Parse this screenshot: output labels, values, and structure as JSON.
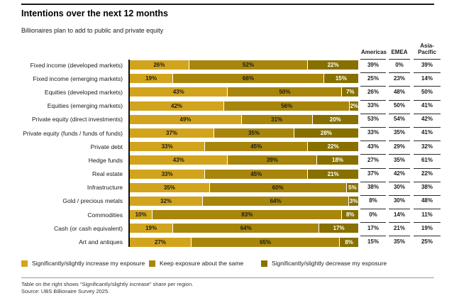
{
  "header": {
    "title": "Intentions over the next 12 months",
    "subtitle": "Billionaires plan to add to public and private equity"
  },
  "footer": {
    "note": "Table on the right shows “Significantly/slightly increase” share per region.",
    "source": "Source: UBS Billionaire Survey 2025."
  },
  "colors": {
    "increase": "#D2A41D",
    "same": "#A8860B",
    "decrease": "#877000"
  },
  "chart_data": {
    "type": "bar",
    "orientation": "horizontal",
    "stacked": true,
    "title": "Intentions over the next 12 months",
    "subtitle": "Billionaires plan to add to public and private equity",
    "xlabel": "",
    "ylabel": "",
    "xlim": [
      0,
      100
    ],
    "unit": "%",
    "legend_position": "bottom",
    "categories": [
      "Fixed income (developed markets)",
      "Fixed income (emerging markets)",
      "Equities (developed markets)",
      "Equities (emerging markets)",
      "Private equity (direct investments)",
      "Private equity (funds / funds of funds)",
      "Private debt",
      "Hedge funds",
      "Real estate",
      "Infrastructure",
      "Gold / precious metals",
      "Commodities",
      "Cash (or cash equivalent)",
      "Art and antiques"
    ],
    "series": [
      {
        "name": "Significantly/slightly increase my exposure",
        "color": "#D2A41D",
        "values": [
          26,
          19,
          43,
          42,
          49,
          37,
          33,
          43,
          33,
          35,
          32,
          10,
          19,
          27
        ]
      },
      {
        "name": "Keep exposure about the same",
        "color": "#A8860B",
        "values": [
          52,
          66,
          50,
          56,
          31,
          35,
          45,
          39,
          45,
          60,
          64,
          83,
          64,
          65
        ]
      },
      {
        "name": "Significantly/slightly decrease my exposure",
        "color": "#877000",
        "values": [
          22,
          15,
          7,
          2,
          20,
          28,
          22,
          18,
          21,
          5,
          3,
          8,
          17,
          8
        ]
      }
    ],
    "region_table": {
      "columns": [
        "Americas",
        "EMEA",
        "Asia-Pacific"
      ],
      "rows": [
        [
          39,
          0,
          39
        ],
        [
          25,
          23,
          14
        ],
        [
          26,
          48,
          50
        ],
        [
          33,
          50,
          41
        ],
        [
          53,
          54,
          42
        ],
        [
          33,
          35,
          41
        ],
        [
          43,
          29,
          32
        ],
        [
          27,
          35,
          61
        ],
        [
          37,
          42,
          22
        ],
        [
          38,
          30,
          38
        ],
        [
          8,
          30,
          48
        ],
        [
          0,
          14,
          11
        ],
        [
          17,
          21,
          19
        ],
        [
          15,
          35,
          25
        ]
      ]
    }
  }
}
